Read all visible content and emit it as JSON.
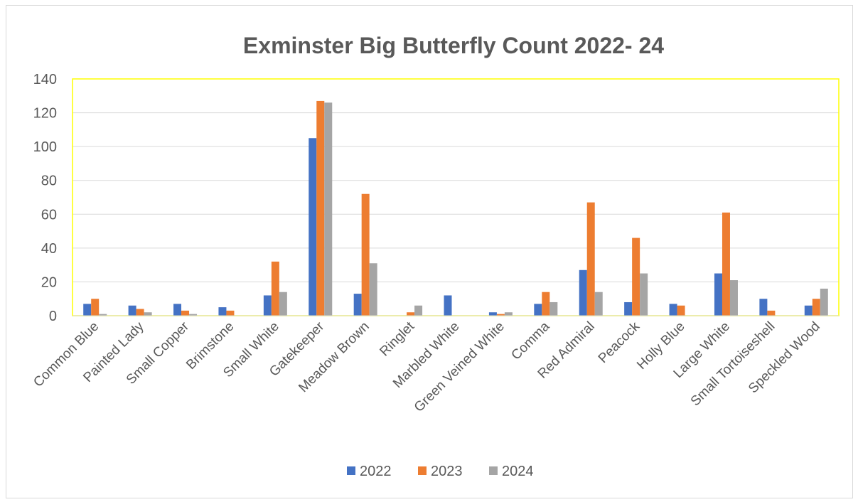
{
  "chart_data": {
    "type": "bar",
    "title": "Exminster Big Butterfly Count 2022- 24",
    "xlabel": "",
    "ylabel": "",
    "ylim": [
      0,
      140
    ],
    "yticks": [
      0,
      20,
      40,
      60,
      80,
      100,
      120,
      140
    ],
    "grid": true,
    "legend_position": "bottom",
    "plot_border_color": "#ffff00",
    "categories": [
      "Common Blue",
      "Painted Lady",
      "Small Copper",
      "Brimstone",
      "Small White",
      "Gatekeeper",
      "Meadow Brown",
      "Ringlet",
      "Marbled White",
      "Green Veined White",
      "Comma",
      "Red Admiral",
      "Peacock",
      "Holly Blue",
      "Large White",
      "Small Tortoiseshell",
      "Speckled Wood"
    ],
    "series": [
      {
        "name": "2022",
        "color": "#4472c4",
        "values": [
          7,
          6,
          7,
          5,
          12,
          105,
          13,
          0,
          12,
          2,
          7,
          27,
          8,
          7,
          25,
          10,
          6
        ]
      },
      {
        "name": "2023",
        "color": "#ed7d31",
        "values": [
          10,
          4,
          3,
          3,
          32,
          127,
          72,
          2,
          0,
          1,
          14,
          67,
          46,
          6,
          61,
          3,
          10
        ]
      },
      {
        "name": "2024",
        "color": "#a5a5a5",
        "values": [
          1,
          2,
          1,
          0,
          14,
          126,
          31,
          6,
          0,
          2,
          8,
          14,
          25,
          0,
          21,
          0,
          16
        ]
      }
    ]
  }
}
